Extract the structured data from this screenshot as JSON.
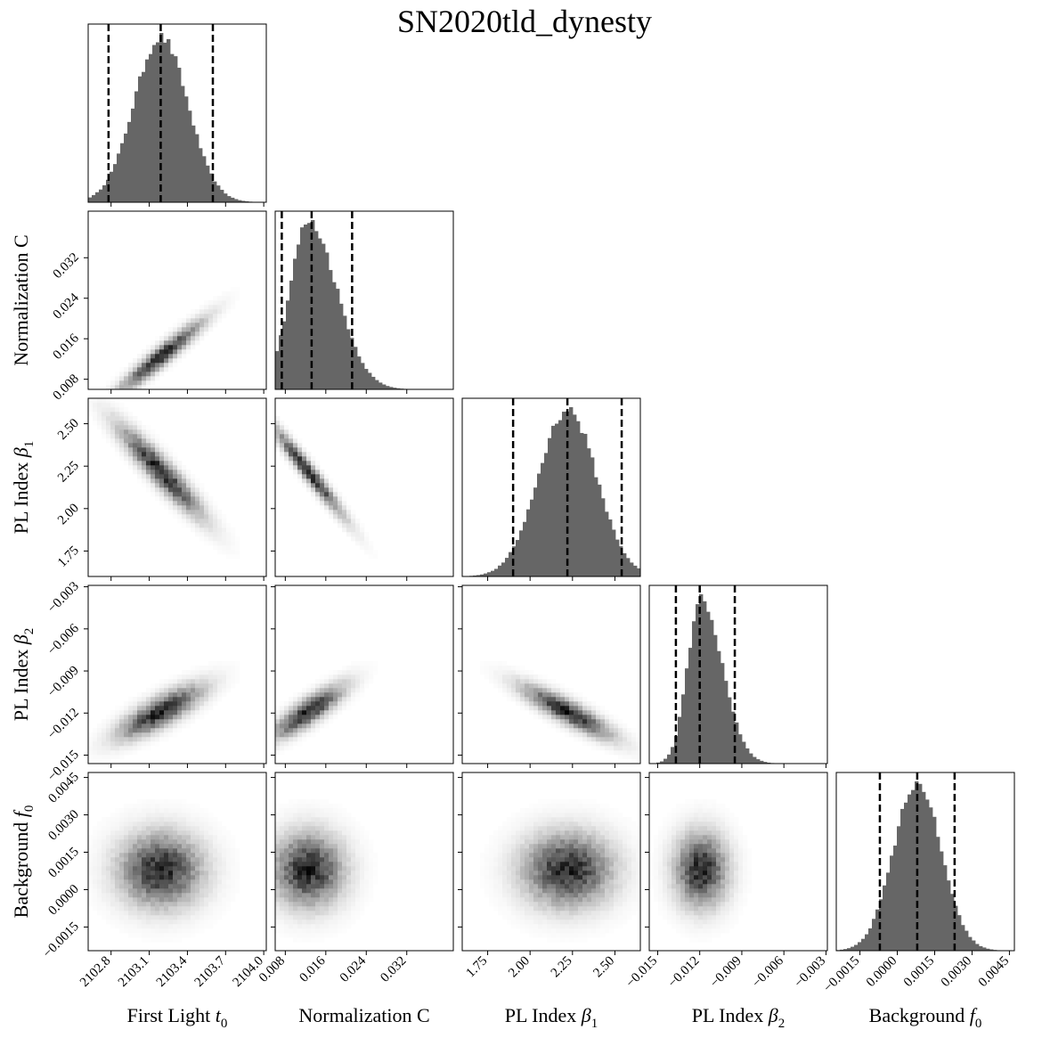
{
  "chart_data": {
    "type": "corner",
    "title": "SN2020tld_dynesty",
    "parameters": [
      {
        "label_text": "First Light ",
        "label_symbol": "t",
        "label_sub": "0",
        "range": [
          2102.62,
          2104.02
        ],
        "ticks": [
          "2102.8",
          "2103.1",
          "2103.4",
          "2103.7",
          "2104.0"
        ],
        "tick_values": [
          2102.8,
          2103.1,
          2103.4,
          2103.7,
          2104.0
        ],
        "quantiles": [
          2102.78,
          2103.19,
          2103.6
        ],
        "mean": 2103.19,
        "sd": 0.21
      },
      {
        "label_text": "Normalization C",
        "label_symbol": "",
        "label_sub": "",
        "range": [
          0.006,
          0.0412
        ],
        "ticks": [
          "0.008",
          "0.016",
          "0.024",
          "0.032"
        ],
        "tick_values": [
          0.008,
          0.016,
          0.024,
          0.032
        ],
        "quantiles": [
          0.0073,
          0.0132,
          0.0212
        ],
        "mean": 0.0125,
        "sd": 0.0045
      },
      {
        "label_text": "PL Index ",
        "label_symbol": "β",
        "label_sub": "1",
        "range": [
          1.6,
          2.65
        ],
        "ticks": [
          "1.75",
          "2.00",
          "2.25",
          "2.50"
        ],
        "tick_values": [
          1.75,
          2.0,
          2.25,
          2.5
        ],
        "quantiles": [
          1.9,
          2.22,
          2.54
        ],
        "mean": 2.22,
        "sd": 0.17
      },
      {
        "label_text": "PL Index ",
        "label_symbol": "β",
        "label_sub": "2",
        "range": [
          -0.0156,
          -0.0029
        ],
        "ticks": [
          "−0.015",
          "−0.012",
          "−0.009",
          "−0.006",
          "−0.003"
        ],
        "tick_values": [
          -0.015,
          -0.012,
          -0.009,
          -0.006,
          -0.003
        ],
        "quantiles": [
          -0.0137,
          -0.012,
          -0.0095
        ],
        "mean": -0.0119,
        "sd": 0.0012
      },
      {
        "label_text": "Background ",
        "label_symbol": "f",
        "label_sub": "0",
        "range": [
          -0.00245,
          0.0047
        ],
        "ticks": [
          "−0.0015",
          "0.0000",
          "0.0015",
          "0.0030",
          "0.0045"
        ],
        "tick_values": [
          -0.0015,
          0.0,
          0.0015,
          0.003,
          0.0045
        ],
        "quantiles": [
          -0.0007,
          0.0008,
          0.0023
        ],
        "mean": 0.0008,
        "sd": 0.00095
      }
    ],
    "correlations": [
      {
        "i": 1,
        "j": 0,
        "r": 0.95
      },
      {
        "i": 2,
        "j": 0,
        "r": -0.93
      },
      {
        "i": 2,
        "j": 1,
        "r": -0.97
      },
      {
        "i": 3,
        "j": 0,
        "r": 0.8
      },
      {
        "i": 3,
        "j": 1,
        "r": 0.85
      },
      {
        "i": 3,
        "j": 2,
        "r": -0.88
      },
      {
        "i": 4,
        "j": 0,
        "r": 0.0
      },
      {
        "i": 4,
        "j": 1,
        "r": 0.0
      },
      {
        "i": 4,
        "j": 2,
        "r": 0.0
      },
      {
        "i": 4,
        "j": 3,
        "r": 0.0
      }
    ],
    "histogram": {
      "fill": "#666666",
      "bins": 50
    },
    "quantile_line": {
      "color": "#000000",
      "style": "dashed"
    },
    "density_color": "#000000",
    "grid": false,
    "legend": "none"
  }
}
